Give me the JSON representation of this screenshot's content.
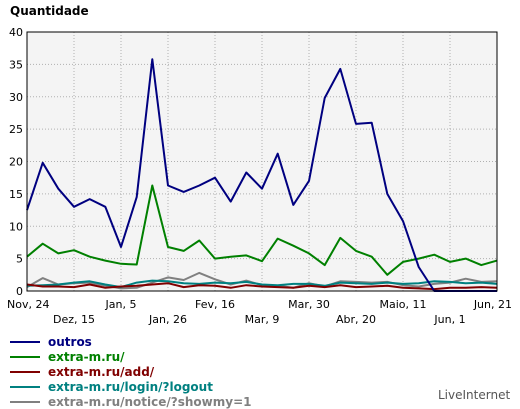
{
  "chart_data": {
    "type": "line",
    "ylabel": "Quantidade",
    "ylim": [
      0,
      40
    ],
    "yticks": [
      0,
      5,
      10,
      15,
      20,
      25,
      30,
      35,
      40
    ],
    "grid": true,
    "x_labels_row1": [
      {
        "i": 0,
        "label": "Nov, 24"
      },
      {
        "i": 6,
        "label": "Jan, 5"
      },
      {
        "i": 12,
        "label": "Fev, 16"
      },
      {
        "i": 18,
        "label": "Mar, 30"
      },
      {
        "i": 24,
        "label": "Maio, 11"
      },
      {
        "i": 30,
        "label": "Jun, 21"
      }
    ],
    "x_labels_row2": [
      {
        "i": 3,
        "label": "Dez, 15"
      },
      {
        "i": 9,
        "label": "Jan, 26"
      },
      {
        "i": 15,
        "label": "Mar, 9"
      },
      {
        "i": 21,
        "label": "Abr, 20"
      },
      {
        "i": 27,
        "label": "Jun, 1"
      }
    ],
    "n_points": 31,
    "series": [
      {
        "name": "outros",
        "color": "#000080",
        "values": [
          12.5,
          19.8,
          15.8,
          13,
          14.2,
          13,
          6.8,
          14.5,
          35.8,
          16.3,
          15.3,
          16.3,
          17.5,
          13.8,
          18.3,
          15.8,
          21.2,
          13.3,
          17,
          29.8,
          34.3,
          25.8,
          26,
          15,
          10.8,
          3.7,
          0,
          0,
          0,
          0,
          0
        ]
      },
      {
        "name": "extra-m.ru/",
        "color": "#008000",
        "values": [
          5.3,
          7.3,
          5.8,
          6.3,
          5.3,
          4.7,
          4.2,
          4.1,
          16.3,
          6.8,
          6.2,
          7.8,
          5,
          5.3,
          5.5,
          4.6,
          8.1,
          7,
          5.8,
          4,
          8.2,
          6.2,
          5.3,
          2.5,
          4.5,
          5,
          5.6,
          4.5,
          5,
          4,
          4.7
        ]
      },
      {
        "name": "extra-m.ru/add/",
        "color": "#800000",
        "values": [
          1,
          0.7,
          0.7,
          0.6,
          1,
          0.5,
          0.7,
          0.8,
          1,
          1.2,
          0.6,
          0.9,
          0.8,
          0.5,
          0.9,
          0.7,
          0.6,
          0.5,
          0.8,
          0.6,
          0.9,
          0.6,
          0.7,
          0.8,
          0.5,
          0.4,
          0.3,
          0.5,
          0.5,
          0.6,
          0.5
        ]
      },
      {
        "name": "extra-m.ru/login/?logout",
        "color": "#008080",
        "values": [
          0.8,
          0.9,
          1,
          1.3,
          1.5,
          1,
          0.6,
          1.3,
          1.6,
          1.5,
          1.2,
          1.1,
          1.3,
          1.2,
          1.4,
          1,
          0.9,
          1.1,
          1.1,
          0.8,
          1.3,
          1.2,
          1.1,
          1.3,
          1.1,
          1.2,
          1.5,
          1.4,
          1.2,
          1.3,
          1.1
        ]
      },
      {
        "name": "extra-m.ru/notice/?showmy=1",
        "color": "#808080",
        "values": [
          0.6,
          2,
          1,
          1.2,
          1.3,
          0.8,
          0.4,
          0.5,
          1.3,
          2.1,
          1.7,
          2.8,
          1.8,
          1,
          1.6,
          0.9,
          0.8,
          0.5,
          1.2,
          0.7,
          1.5,
          1.4,
          1.3,
          1.4,
          0.9,
          0.7,
          1.1,
          1.3,
          1.9,
          1.4,
          1.5
        ]
      }
    ]
  },
  "brand": "LiveInternet"
}
